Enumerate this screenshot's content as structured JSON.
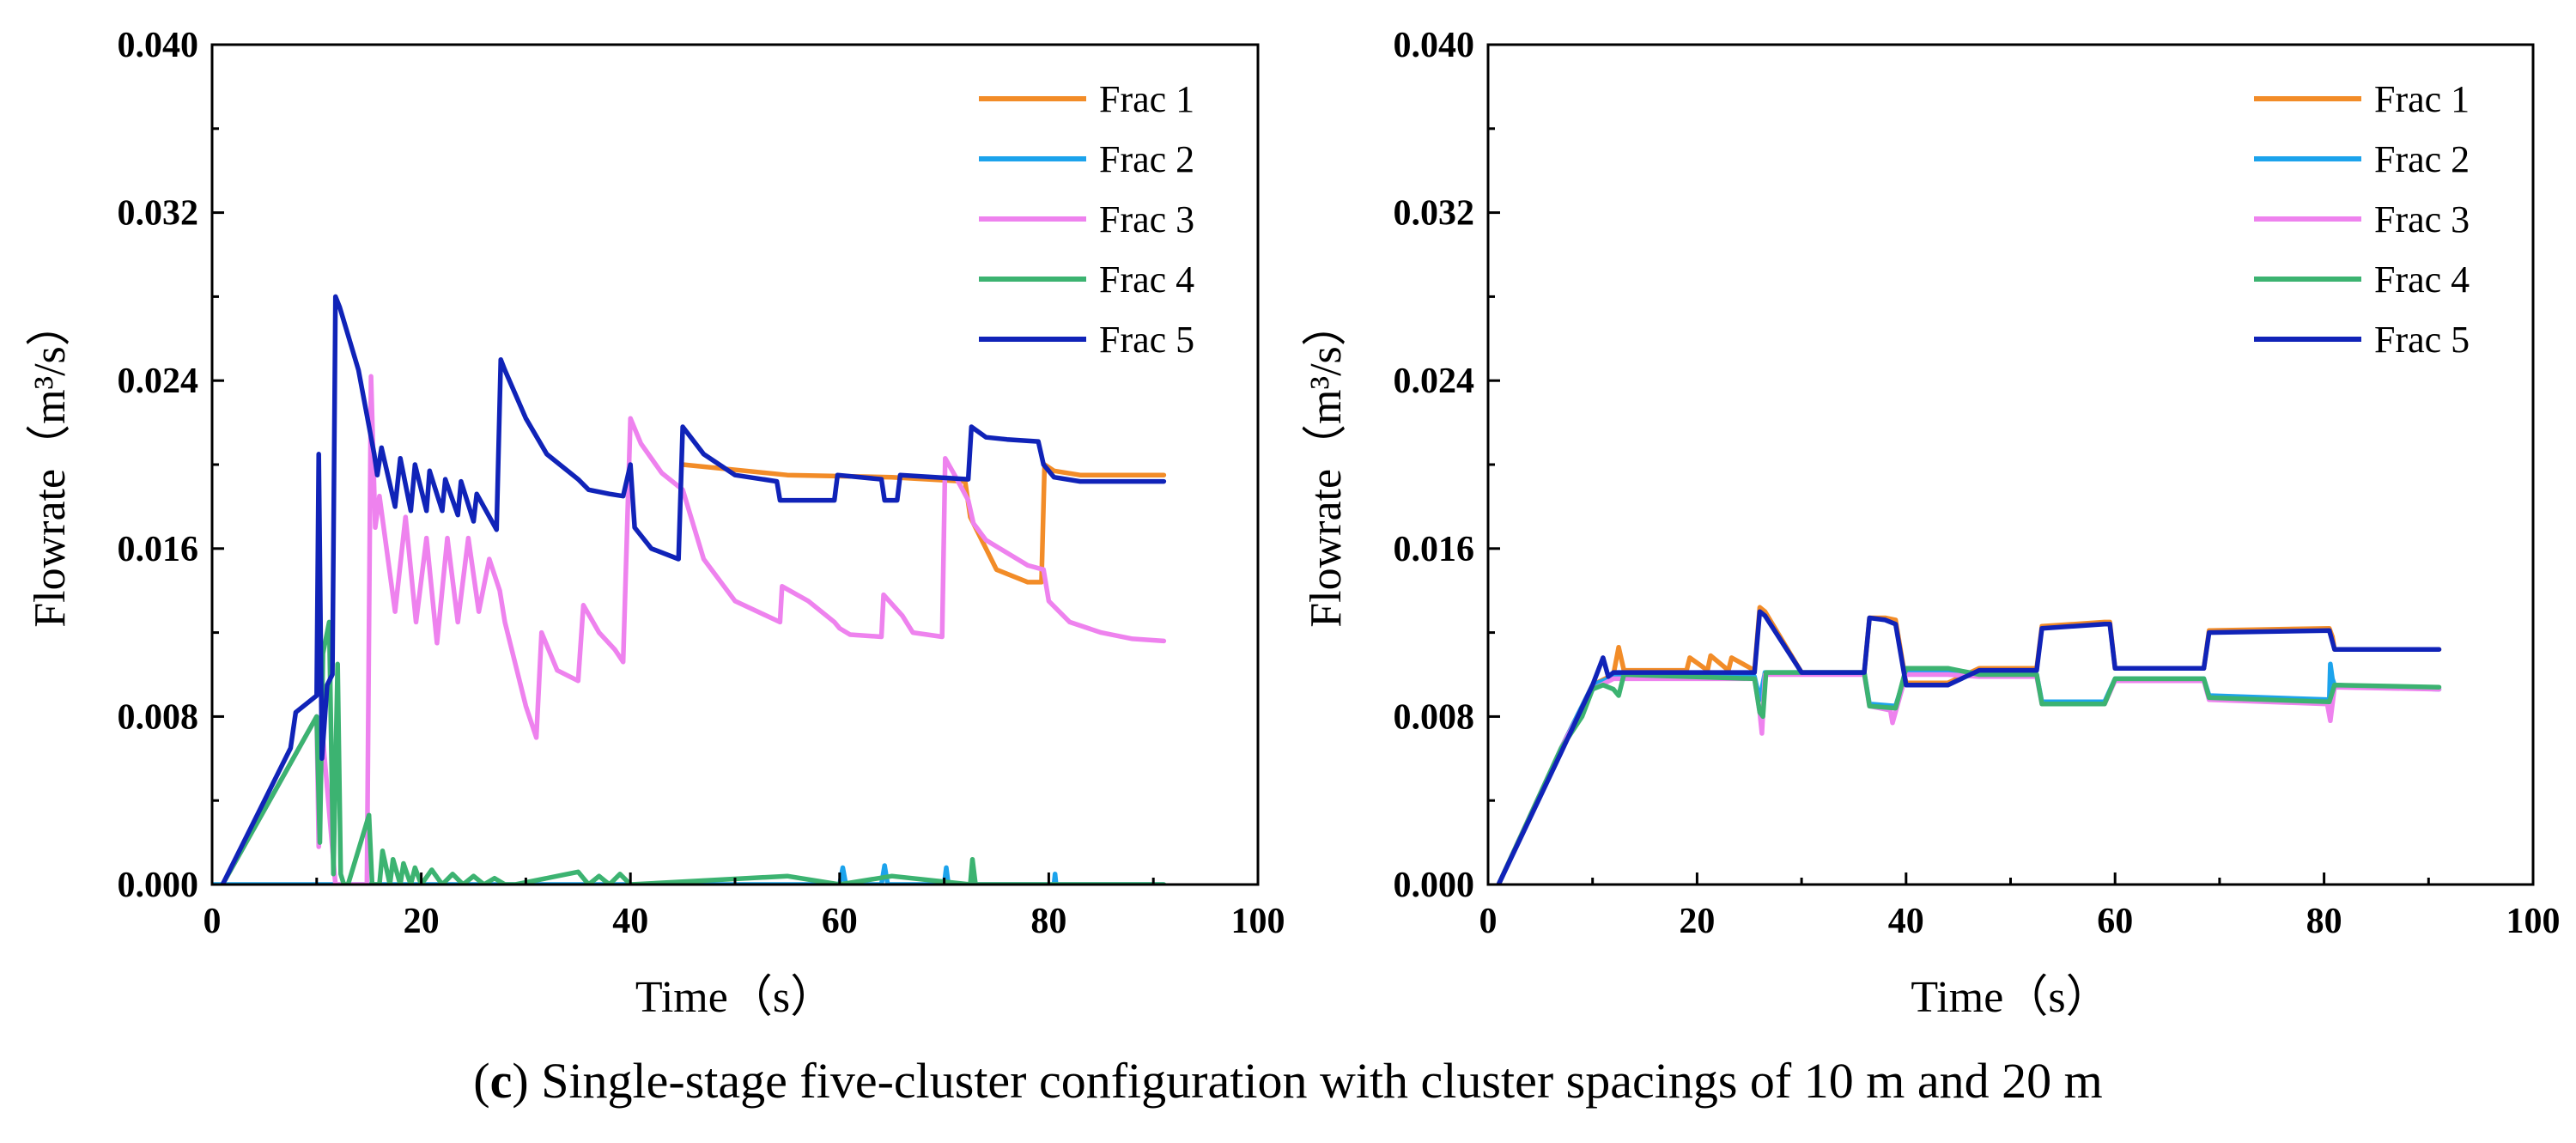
{
  "caption": {
    "label": "c",
    "text": "Single-stage five-cluster configuration with cluster spacings of 10 m and 20 m"
  },
  "colors": {
    "Frac 1": "#f28c28",
    "Frac 2": "#1ca3ec",
    "Frac 3": "#ee82ee",
    "Frac 4": "#3cb371",
    "Frac 5": "#1023b8"
  },
  "chart_data": [
    {
      "type": "line",
      "panel": "left",
      "xlabel": "Time（s）",
      "ylabel": "Flowrate（m³/s）",
      "xlim": [
        0,
        100
      ],
      "ylim": [
        0,
        0.04
      ],
      "xticks": [
        "0",
        "20",
        "40",
        "60",
        "80",
        "100"
      ],
      "yticks": [
        "0.000",
        "0.008",
        "0.016",
        "0.024",
        "0.032",
        "0.040"
      ],
      "legend": [
        "Frac 1",
        "Frac 2",
        "Frac 3",
        "Frac 4",
        "Frac 5"
      ],
      "legend_position": "top-right",
      "series": [
        {
          "name": "Frac 1",
          "x": [
            45,
            55,
            65,
            72,
            72.5,
            75,
            78,
            79.3,
            79.6,
            80.5,
            83,
            91
          ],
          "y": [
            0.02,
            0.0195,
            0.0194,
            0.0192,
            0.0175,
            0.015,
            0.0144,
            0.0144,
            0.02,
            0.0197,
            0.0195,
            0.0195
          ]
        },
        {
          "name": "Frac 2",
          "x": [
            0,
            17,
            17,
            60,
            60.3,
            60.6,
            64,
            64.3,
            64.6,
            70,
            70.2,
            70.4,
            80.5,
            80.6,
            80.7,
            91
          ],
          "y": [
            0.0,
            0.0,
            0.0,
            0.0,
            0.0008,
            0.0,
            0.0,
            0.0009,
            0.0,
            0.0,
            0.0008,
            0.0,
            0.0,
            0.0005,
            0.0,
            0.0
          ]
        },
        {
          "name": "Frac 3",
          "x": [
            1,
            10,
            10.2,
            10.5,
            11.8,
            14.8,
            15.2,
            15.6,
            16,
            17.5,
            18.5,
            19.5,
            20.5,
            21.5,
            22.5,
            23.5,
            24.5,
            25.5,
            26.5,
            27.5,
            28,
            30,
            31,
            31.5,
            33,
            35,
            35.5,
            37,
            38.5,
            39.3,
            40,
            41,
            43,
            45,
            47,
            50,
            54.3,
            54.5,
            57,
            59.5,
            60,
            61,
            64,
            64.2,
            66,
            67,
            69.8,
            70.1,
            71,
            72.3,
            72.8,
            74,
            78,
            79.5,
            80,
            82,
            85,
            88,
            91
          ],
          "y": [
            0,
            0.008,
            0.0018,
            0.0075,
            0.0,
            0.0,
            0.0242,
            0.017,
            0.0185,
            0.013,
            0.0175,
            0.0125,
            0.0165,
            0.0115,
            0.0165,
            0.0125,
            0.0165,
            0.013,
            0.0155,
            0.014,
            0.0125,
            0.0085,
            0.007,
            0.012,
            0.0102,
            0.0097,
            0.0133,
            0.012,
            0.0112,
            0.0106,
            0.0222,
            0.021,
            0.0196,
            0.0188,
            0.0155,
            0.0135,
            0.0125,
            0.0142,
            0.0135,
            0.0125,
            0.0122,
            0.0119,
            0.0118,
            0.0138,
            0.0128,
            0.012,
            0.0118,
            0.0203,
            0.0195,
            0.0183,
            0.0172,
            0.0164,
            0.0152,
            0.015,
            0.0135,
            0.0125,
            0.012,
            0.0117,
            0.0116
          ]
        },
        {
          "name": "Frac 4",
          "x": [
            1,
            10,
            10.3,
            10.6,
            11.2,
            11.6,
            12,
            12.3,
            12.6,
            13,
            15,
            15.3,
            16,
            16.3,
            17,
            17.3,
            18,
            18.3,
            19,
            19.4,
            20,
            21,
            22,
            23,
            24,
            25,
            26,
            27,
            28,
            29,
            35,
            36,
            37,
            38,
            39,
            40,
            55,
            60,
            65,
            72.5,
            72.7,
            73,
            91
          ],
          "y": [
            0,
            0.008,
            0.002,
            0.011,
            0.0125,
            0.0005,
            0.0105,
            0.0005,
            0.0,
            0.0,
            0.0033,
            0.0,
            0.0,
            0.0016,
            0.0,
            0.0012,
            0.0,
            0.001,
            0.0,
            0.0008,
            0.0,
            0.0007,
            0.0,
            0.0005,
            0.0,
            0.0004,
            0.0,
            0.0003,
            0.0,
            0.0,
            0.0006,
            0.0,
            0.0004,
            0.0,
            0.0005,
            0.0,
            0.0004,
            0.0,
            0.0004,
            0.0,
            0.0012,
            0.0,
            0.0
          ]
        },
        {
          "name": "Frac 5",
          "x": [
            1,
            7.5,
            8,
            10,
            10.2,
            10.5,
            11,
            11.5,
            11.8,
            12.2,
            14,
            15.5,
            15.8,
            16.2,
            17.5,
            18,
            19,
            19.4,
            20.5,
            20.8,
            22,
            22.3,
            23.5,
            23.8,
            25,
            25.3,
            27.2,
            27.6,
            28,
            30,
            32,
            35,
            36,
            38,
            39.3,
            40,
            40.4,
            42,
            44.6,
            45,
            47,
            50,
            54,
            54.3,
            59.5,
            59.8,
            64,
            64.3,
            65.5,
            65.8,
            72.3,
            72.6,
            74,
            76,
            79,
            79.5,
            80.5,
            83,
            91
          ],
          "y": [
            0,
            0.0065,
            0.0082,
            0.009,
            0.0205,
            0.006,
            0.0095,
            0.01,
            0.028,
            0.0275,
            0.0245,
            0.0205,
            0.0195,
            0.0208,
            0.018,
            0.0203,
            0.0178,
            0.02,
            0.0178,
            0.0197,
            0.0178,
            0.0193,
            0.0176,
            0.0192,
            0.0173,
            0.0186,
            0.0169,
            0.025,
            0.0245,
            0.0222,
            0.0205,
            0.0193,
            0.0188,
            0.0186,
            0.0185,
            0.02,
            0.017,
            0.016,
            0.0155,
            0.0218,
            0.0205,
            0.0195,
            0.0192,
            0.0183,
            0.0183,
            0.0195,
            0.0193,
            0.0183,
            0.0183,
            0.0195,
            0.0193,
            0.0218,
            0.0213,
            0.0212,
            0.0211,
            0.02,
            0.0194,
            0.0192,
            0.0192
          ]
        }
      ]
    },
    {
      "type": "line",
      "panel": "right",
      "xlabel": "Time（s）",
      "ylabel": "Flowrate（m³/s）",
      "xlim": [
        0,
        100
      ],
      "ylim": [
        0,
        0.04
      ],
      "xticks": [
        "0",
        "20",
        "40",
        "60",
        "80",
        "100"
      ],
      "yticks": [
        "0.000",
        "0.008",
        "0.016",
        "0.024",
        "0.032",
        "0.040"
      ],
      "legend": [
        "Frac 1",
        "Frac 2",
        "Frac 3",
        "Frac 4",
        "Frac 5"
      ],
      "legend_position": "top-right",
      "series": [
        {
          "name": "Frac 1",
          "x": [
            1,
            7,
            10,
            12,
            12.5,
            13,
            19,
            19.3,
            21,
            21.3,
            23,
            23.3,
            25.5,
            26,
            26.5,
            30,
            36,
            36.5,
            38,
            39,
            40,
            44,
            47,
            52.5,
            53,
            59,
            59.5,
            60,
            68.5,
            69,
            80.5,
            80.8,
            81,
            91
          ],
          "y": [
            0,
            0.0065,
            0.0095,
            0.01,
            0.0113,
            0.0102,
            0.0102,
            0.0108,
            0.0102,
            0.0109,
            0.0102,
            0.0108,
            0.0102,
            0.0132,
            0.013,
            0.0101,
            0.0101,
            0.0127,
            0.0127,
            0.0126,
            0.0096,
            0.0096,
            0.0103,
            0.0103,
            0.0123,
            0.0125,
            0.0125,
            0.0103,
            0.0103,
            0.0121,
            0.0122,
            0.0118,
            0.0112,
            0.0112
          ]
        },
        {
          "name": "Frac 2",
          "x": [
            1,
            7,
            10,
            12,
            25.5,
            26,
            26.5,
            30,
            36,
            36.5,
            39,
            40,
            44,
            47,
            52.5,
            53,
            59,
            60,
            68.5,
            69,
            80.5,
            80.6,
            80.8,
            81,
            91
          ],
          "y": [
            0,
            0.0065,
            0.0095,
            0.0099,
            0.0099,
            0.0088,
            0.0101,
            0.0101,
            0.0101,
            0.0086,
            0.0085,
            0.0101,
            0.0101,
            0.01,
            0.01,
            0.0087,
            0.0087,
            0.0098,
            0.0098,
            0.009,
            0.0088,
            0.0105,
            0.0098,
            0.0095,
            0.0093
          ]
        },
        {
          "name": "Frac 3",
          "x": [
            1,
            7,
            10,
            12,
            25.5,
            26,
            26.2,
            26.5,
            30,
            36,
            36.5,
            38.5,
            38.7,
            40,
            44,
            47,
            52.5,
            53,
            59,
            60,
            68.5,
            69,
            80.3,
            80.6,
            81,
            91
          ],
          "y": [
            0,
            0.0065,
            0.0093,
            0.0098,
            0.0098,
            0.0082,
            0.0072,
            0.01,
            0.01,
            0.01,
            0.0085,
            0.0083,
            0.0077,
            0.01,
            0.01,
            0.0099,
            0.0099,
            0.0086,
            0.0086,
            0.0097,
            0.0097,
            0.0088,
            0.0086,
            0.0078,
            0.0094,
            0.0093
          ]
        },
        {
          "name": "Frac 4",
          "x": [
            1,
            7,
            9,
            10,
            11,
            12,
            12.5,
            13,
            19,
            25.5,
            26,
            26.3,
            26.6,
            30,
            36,
            36.5,
            39,
            40,
            44,
            47,
            52.5,
            53,
            59,
            60,
            68.5,
            69,
            80.5,
            81,
            91
          ],
          "y": [
            0,
            0.0065,
            0.008,
            0.0093,
            0.0095,
            0.0093,
            0.009,
            0.01,
            0.0099,
            0.0098,
            0.0082,
            0.008,
            0.0101,
            0.0101,
            0.0101,
            0.0085,
            0.0084,
            0.0103,
            0.0103,
            0.01,
            0.01,
            0.0086,
            0.0086,
            0.0098,
            0.0098,
            0.0089,
            0.0087,
            0.0095,
            0.0094
          ]
        },
        {
          "name": "Frac 5",
          "x": [
            1,
            7,
            10,
            11,
            11.5,
            12,
            25.5,
            26,
            26.5,
            30,
            36,
            36.5,
            38,
            39,
            40,
            44,
            47,
            52.5,
            53,
            59,
            59.5,
            60,
            68.5,
            69,
            80.5,
            81,
            91
          ],
          "y": [
            0,
            0.0063,
            0.0095,
            0.0108,
            0.0099,
            0.0101,
            0.0101,
            0.013,
            0.0128,
            0.0101,
            0.0101,
            0.0127,
            0.0126,
            0.0124,
            0.0095,
            0.0095,
            0.0102,
            0.0102,
            0.0122,
            0.0124,
            0.0124,
            0.0103,
            0.0103,
            0.012,
            0.0121,
            0.0112,
            0.0112
          ]
        }
      ]
    }
  ]
}
